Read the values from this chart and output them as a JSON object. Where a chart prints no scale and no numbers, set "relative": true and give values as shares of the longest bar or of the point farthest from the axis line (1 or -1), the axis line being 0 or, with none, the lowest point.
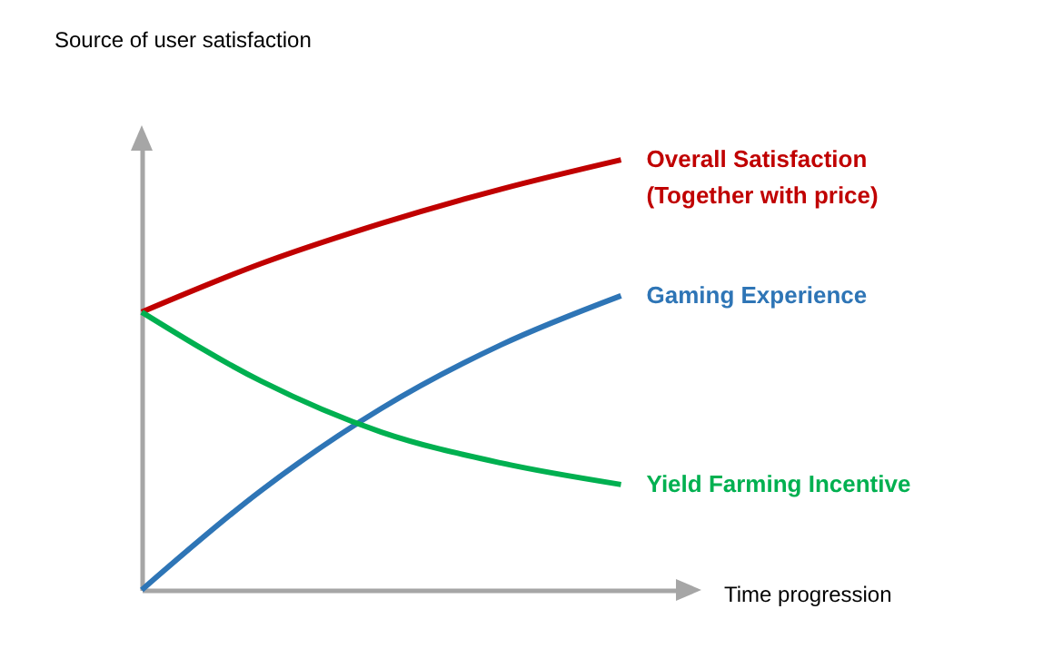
{
  "chart_data": {
    "type": "line",
    "relative": true,
    "ylabel": "Source of user satisfaction",
    "xlabel": "Time progression",
    "legend": false,
    "grid": false,
    "categories": [
      null,
      null,
      null,
      null,
      null
    ],
    "series": [
      {
        "name": "Overall Satisfaction (Together with price)",
        "color": "#c00000",
        "values": [
          0.646,
          0.759,
          0.852,
          0.932,
          1.0
        ]
      },
      {
        "name": "Gaming Experience",
        "color": "#2e75b6",
        "values": [
          0,
          0.232,
          0.422,
          0.57,
          0.684
        ]
      },
      {
        "name": "Yield Farming Incentive",
        "color": "#00b050",
        "values": [
          0.646,
          0.485,
          0.367,
          0.295,
          0.245
        ]
      }
    ]
  }
}
